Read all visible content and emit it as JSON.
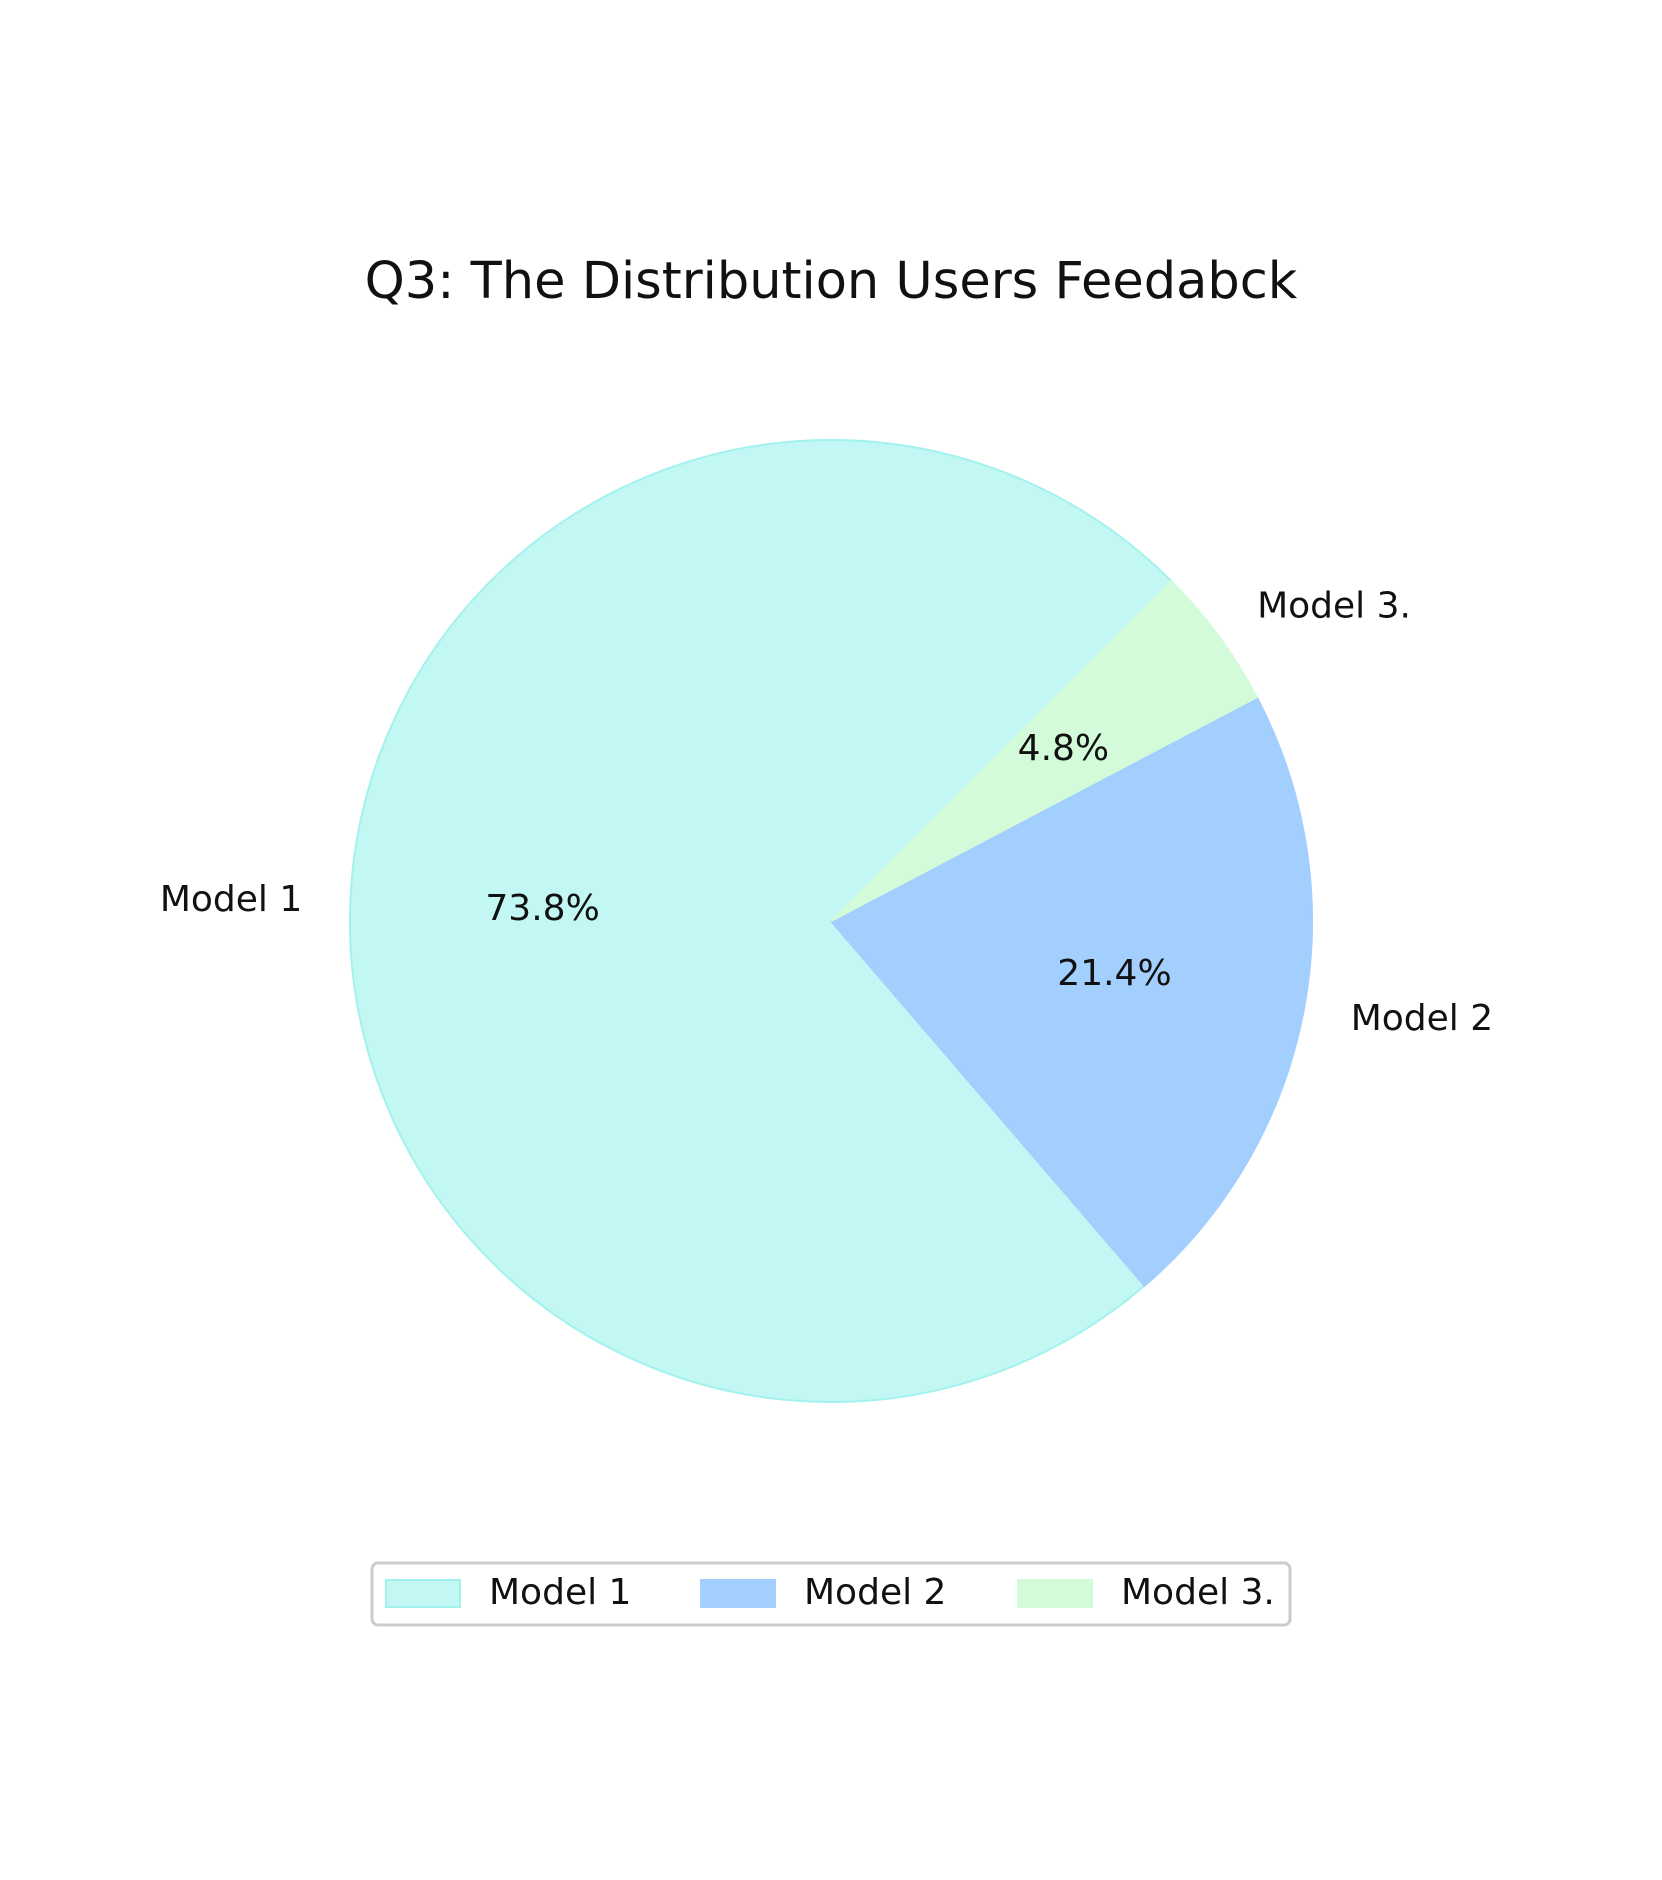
{
  "chart_data": {
    "type": "pie",
    "title": "Q3: The Distribution Users Feedabck",
    "labels": [
      "Model 1",
      "Model 2",
      "Model 3."
    ],
    "values": [
      73.8,
      21.4,
      4.8
    ],
    "pct_labels": [
      "73.8%",
      "21.4%",
      "4.8%"
    ],
    "colors": [
      "#c2f7f3",
      "#a2cffd",
      "#d4fbd9"
    ],
    "edge_colors": [
      "#a3f2ee",
      "#a2cffd",
      "#d4fbd9"
    ],
    "legend": {
      "placement": "bottom-center",
      "entries": [
        "Model 1",
        "Model 2",
        "Model 3."
      ]
    }
  }
}
